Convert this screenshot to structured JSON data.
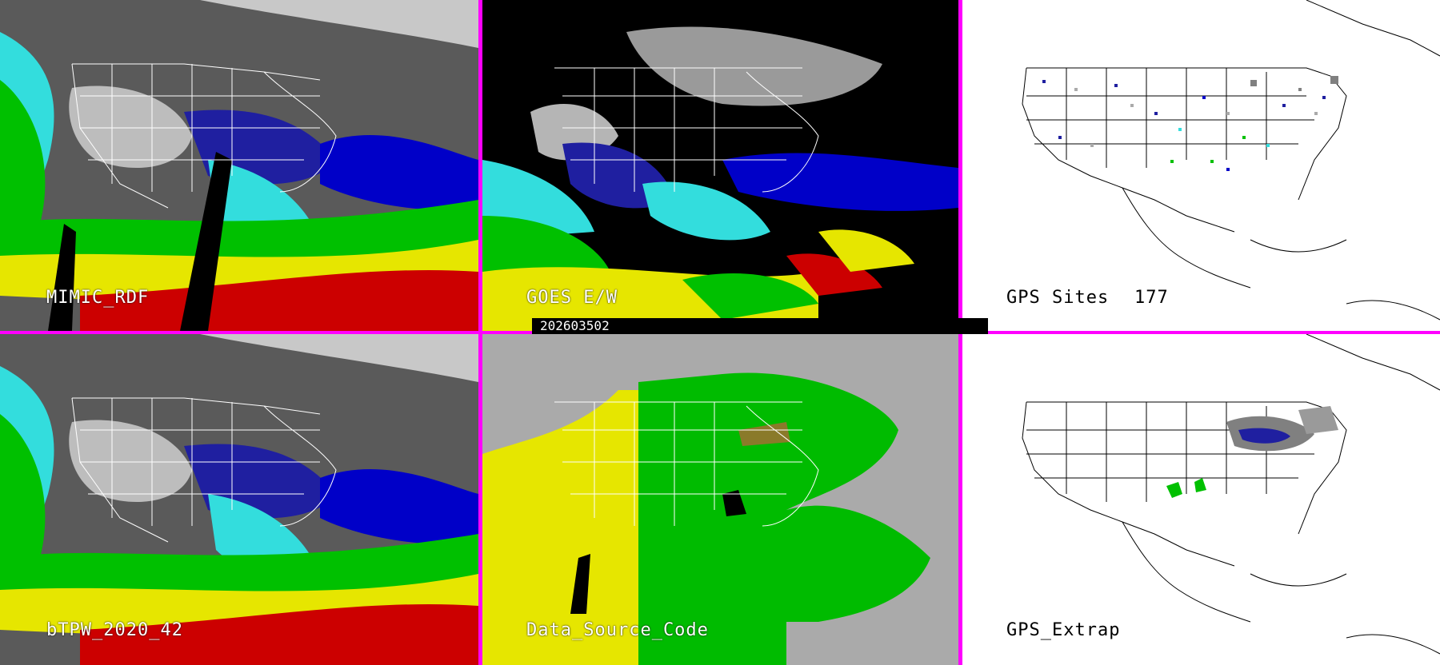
{
  "panels": {
    "top_left": {
      "label": "MIMIC_RDF"
    },
    "top_center": {
      "label": "GOES E/W"
    },
    "top_right": {
      "label": "GPS Sites",
      "count": "177"
    },
    "bottom_left": {
      "label": "bTPW_2020_42"
    },
    "bottom_center": {
      "label": "Data_Source_Code"
    },
    "bottom_right": {
      "label": "GPS_Extrap"
    }
  },
  "timestamp": "202603502",
  "colors": {
    "divider": "#ff00ff",
    "tpw_scale": [
      "#c8c8c8",
      "#1f1fa0",
      "#0000c8",
      "#33dddd",
      "#00c000",
      "#e6e600",
      "#cc0000"
    ],
    "source_gray": "#aaaaaa",
    "source_yellow": "#e6e600",
    "source_green": "#00bb00"
  }
}
